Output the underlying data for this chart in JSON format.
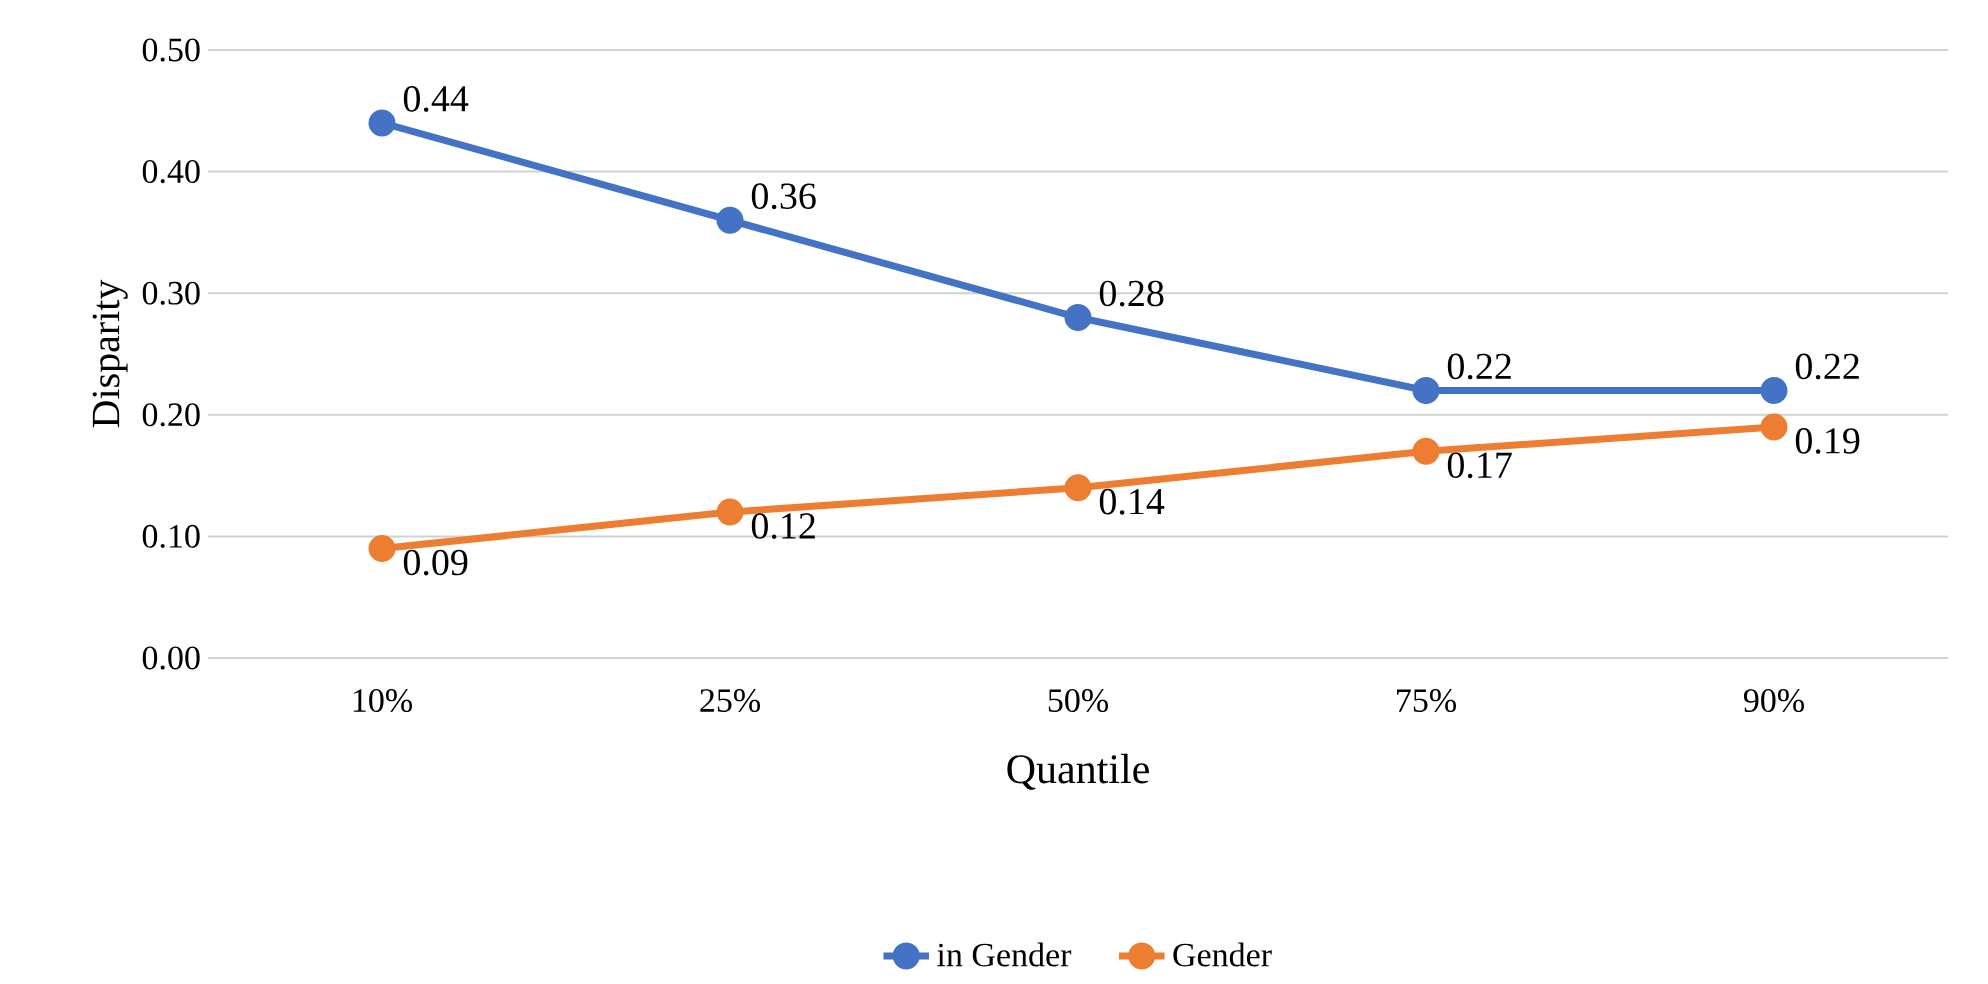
{
  "chart_data": {
    "type": "line",
    "xlabel": "Quantile",
    "ylabel": "Disparity",
    "categories": [
      "10%",
      "25%",
      "50%",
      "75%",
      "90%"
    ],
    "series": [
      {
        "name": "in  Gender",
        "color": "#4472c4",
        "values": [
          0.44,
          0.36,
          0.28,
          0.22,
          0.22
        ]
      },
      {
        "name": "Gender",
        "color": "#ed7d31",
        "values": [
          0.09,
          0.12,
          0.14,
          0.17,
          0.19
        ]
      }
    ],
    "ylim": [
      0,
      0.5
    ],
    "yticks": [
      {
        "value": 0,
        "label": "0.00"
      },
      {
        "value": 0.1,
        "label": "0.10"
      },
      {
        "value": 0.2,
        "label": "0.20"
      },
      {
        "value": 0.3,
        "label": "0.30"
      },
      {
        "value": 0.4,
        "label": "0.40"
      },
      {
        "value": 0.5,
        "label": "0.50"
      }
    ],
    "grid": "y",
    "data_labels": true,
    "legend": "bottom",
    "marker": "circle",
    "line_style": "solid"
  }
}
